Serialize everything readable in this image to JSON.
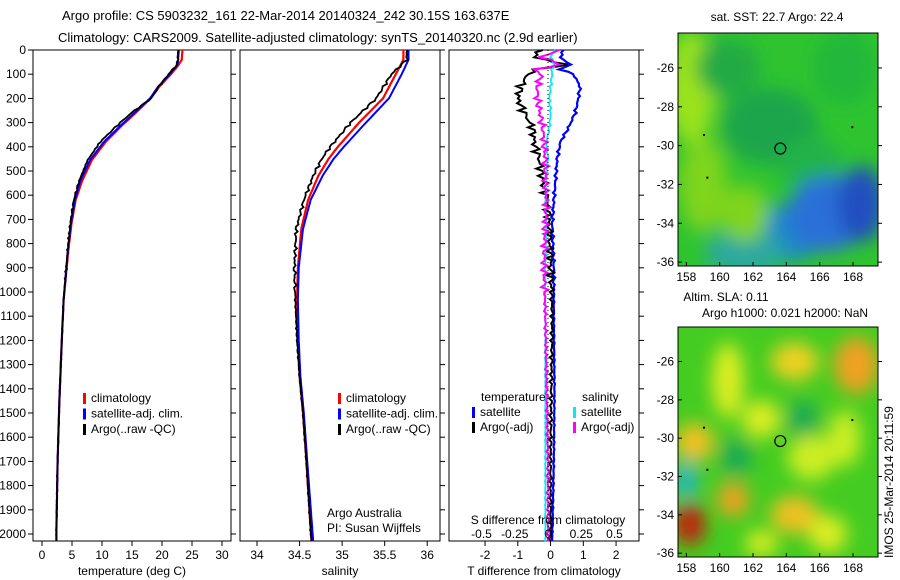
{
  "title_line1": "Argo profile: CS 5903232_161 22-Mar-2014 20140324_242 30.15S 163.637E",
  "title_line2": "Climatology: CARS2009. Satellite-adjusted climatology: synTS_20140320.nc (2.9d earlier)",
  "colors": {
    "climatology": "#ff0000",
    "satellite": "#0000ff",
    "argo": "#000000",
    "sat_salinity": "#00eeee",
    "argo_salinity": "#ff00ff"
  },
  "chart_data": [
    {
      "type": "line",
      "id": "temperature",
      "xlabel": "temperature (deg C)",
      "ylabel": "depth",
      "xlim": [
        -1.5,
        31.5
      ],
      "ylim": [
        0,
        2030
      ],
      "xticks": [
        0,
        5,
        10,
        15,
        20,
        25,
        30
      ],
      "yticks": [
        0,
        100,
        200,
        300,
        400,
        500,
        600,
        700,
        800,
        900,
        1000,
        1100,
        1200,
        1300,
        1400,
        1500,
        1600,
        1700,
        1800,
        1900,
        2000
      ],
      "depth": [
        0,
        40,
        60,
        100,
        150,
        200,
        260,
        310,
        380,
        455,
        540,
        620,
        720,
        826,
        1033,
        1200,
        1446,
        1700,
        1983,
        2030
      ],
      "series": [
        {
          "name": "climatology",
          "values": [
            23.4,
            23.3,
            22.8,
            21.5,
            19.6,
            18.1,
            15.6,
            13.4,
            10.6,
            8.3,
            6.7,
            5.6,
            4.9,
            4.4,
            3.6,
            3.3,
            2.9,
            2.6,
            2.4,
            2.4
          ]
        },
        {
          "name": "satellite-adj. clim.",
          "values": [
            22.8,
            22.7,
            22.6,
            21.3,
            19.4,
            18.0,
            15.4,
            13.2,
            10.3,
            8.0,
            6.4,
            5.5,
            4.8,
            4.3,
            3.6,
            3.3,
            2.9,
            2.6,
            2.4,
            2.4
          ]
        },
        {
          "name": "Argo(..raw -QC)",
          "values": [
            22.7,
            22.6,
            22.5,
            21.1,
            19.5,
            18.2,
            14.9,
            12.6,
            9.7,
            7.6,
            6.2,
            5.3,
            4.7,
            4.3,
            3.6,
            3.3,
            2.9,
            2.6,
            2.4,
            2.4
          ]
        }
      ],
      "legend": [
        "climatology",
        "satellite-adj. clim.",
        "Argo(..raw -QC)"
      ],
      "legend_placement": "bottom-center"
    },
    {
      "type": "line",
      "id": "salinity",
      "xlabel": "salinity",
      "xlim": [
        33.8,
        36.15
      ],
      "ylim": [
        0,
        2030
      ],
      "xticks": [
        34,
        34.5,
        35,
        35.5,
        36
      ],
      "depth": [
        0,
        40,
        100,
        200,
        300,
        400,
        450,
        520,
        620,
        740,
        900,
        1033,
        1200,
        1350,
        1500,
        1700,
        1983,
        2030
      ],
      "series": [
        {
          "name": "climatology",
          "values": [
            35.72,
            35.72,
            35.63,
            35.48,
            35.2,
            34.95,
            34.84,
            34.72,
            34.6,
            34.52,
            34.48,
            34.47,
            34.48,
            34.5,
            34.54,
            34.58,
            34.63,
            34.64
          ]
        },
        {
          "name": "satellite-adj. clim.",
          "values": [
            35.78,
            35.78,
            35.7,
            35.55,
            35.28,
            35.02,
            34.9,
            34.77,
            34.63,
            34.54,
            34.49,
            34.48,
            34.49,
            34.51,
            34.55,
            34.59,
            34.65,
            34.66
          ]
        },
        {
          "name": "Argo(..raw -QC)",
          "values": [
            35.76,
            35.76,
            35.58,
            35.4,
            35.1,
            34.86,
            34.76,
            34.66,
            34.55,
            34.46,
            34.44,
            34.45,
            34.47,
            34.5,
            34.54,
            34.58,
            34.63,
            34.64
          ]
        }
      ],
      "legend": [
        "climatology",
        "satellite-adj. clim.",
        "Argo(..raw -QC)"
      ],
      "annotation_line1": "Argo Australia",
      "annotation_line2": "PI: Susan Wijffels"
    },
    {
      "type": "line",
      "id": "difference",
      "xlabel": "T difference from climatology",
      "xlabel_top": "S difference from climatology",
      "xlim": [
        -3.1,
        2.7
      ],
      "ylim": [
        0,
        2030
      ],
      "xticks": [
        -2,
        -1,
        0,
        1,
        2
      ],
      "xticks_top": [
        -0.5,
        -0.25,
        0,
        0.25,
        0.5
      ],
      "depth": [
        0,
        30,
        60,
        80,
        100,
        150,
        200,
        260,
        320,
        380,
        450,
        540,
        620,
        720,
        900,
        1100,
        1400,
        1700,
        2030
      ],
      "series": [
        {
          "name": "temperature satellite",
          "scale": "T",
          "values": [
            0.4,
            0.3,
            0.6,
            0.3,
            0.7,
            0.9,
            0.85,
            0.75,
            0.55,
            0.3,
            0.2,
            0.15,
            0.1,
            0.05,
            0.1,
            0.1,
            0.12,
            0.1,
            0.05
          ]
        },
        {
          "name": "temperature Argo(-adj)",
          "scale": "T",
          "values": [
            -0.3,
            -0.5,
            0.5,
            -0.4,
            -0.7,
            -0.9,
            -1.0,
            -0.8,
            -0.55,
            -0.5,
            -0.35,
            -0.25,
            -0.1,
            -0.05,
            0.0,
            0.05,
            0.02,
            0.0,
            0.0
          ]
        },
        {
          "name": "salinity satellite",
          "scale": "S",
          "values": [
            0.05,
            0.02,
            0.05,
            0.03,
            0.03,
            0.02,
            0.01,
            0.02,
            0.01,
            -0.01,
            0.0,
            -0.01,
            -0.02,
            -0.01,
            -0.02,
            -0.02,
            -0.02,
            -0.02,
            -0.02
          ]
        },
        {
          "name": "salinity Argo(-adj)",
          "scale": "S",
          "values": [
            0.08,
            -0.05,
            0.1,
            -0.1,
            -0.05,
            -0.08,
            -0.08,
            -0.06,
            -0.04,
            -0.03,
            -0.02,
            -0.02,
            -0.01,
            -0.02,
            -0.03,
            -0.02,
            -0.01,
            0.0,
            0.0
          ]
        }
      ],
      "legend_temperature_header": "temperature",
      "legend_salinity_header": "salinity",
      "legend": [
        "satellite",
        "Argo(-adj)",
        "satellite",
        "Argo(-adj)"
      ]
    },
    {
      "type": "heatmap",
      "id": "sst_map",
      "title": "sat. SST: 22.7  Argo: 22.4",
      "xlim": [
        157.5,
        169.5
      ],
      "ylim": [
        -36.2,
        -24.2
      ],
      "xticks": [
        158,
        160,
        162,
        164,
        166,
        168
      ],
      "yticks": [
        -26,
        -28,
        -30,
        -32,
        -34,
        -36
      ],
      "argo_position": [
        163.637,
        -30.15
      ]
    },
    {
      "type": "heatmap",
      "id": "sla_map",
      "title_line1": "Altim. SLA: 0.11",
      "title_line2": "Argo h1000: 0.021 h2000: NaN",
      "xlim": [
        157.5,
        169.5
      ],
      "ylim": [
        -36.2,
        -24.2
      ],
      "xticks": [
        158,
        160,
        162,
        164,
        166,
        168
      ],
      "yticks": [
        -26,
        -28,
        -30,
        -32,
        -34,
        -36
      ],
      "argo_position": [
        163.637,
        -30.15
      ]
    }
  ],
  "footer_stamp": "IMOS 25-Mar-2014 20:11:59"
}
